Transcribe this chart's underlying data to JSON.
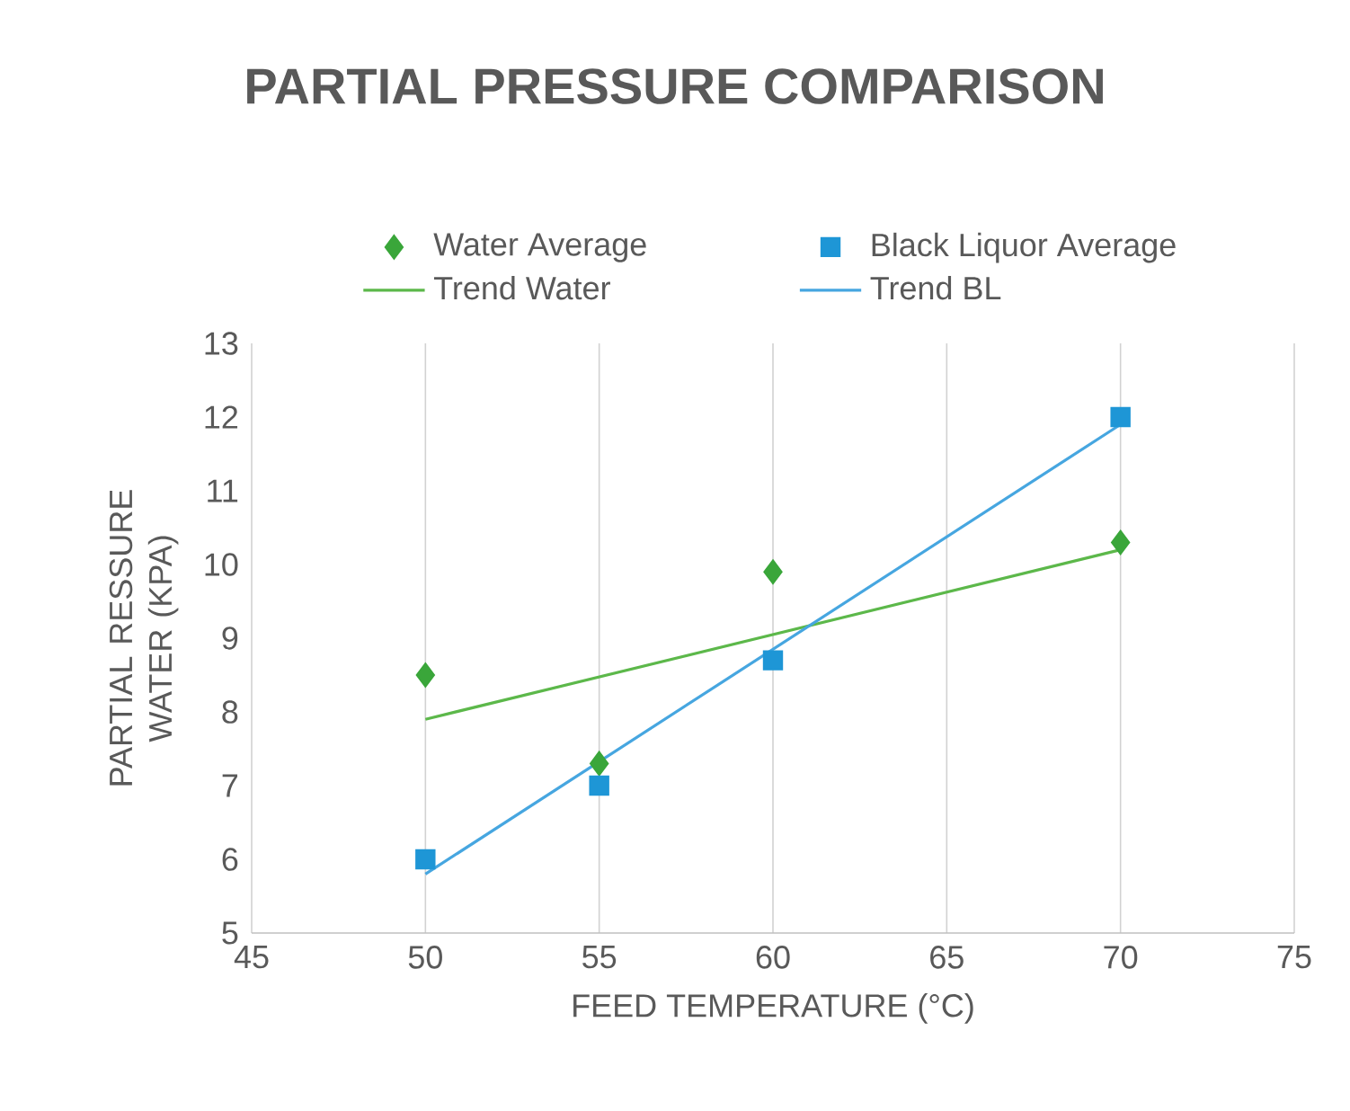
{
  "chart_data": {
    "type": "scatter",
    "title": "PARTIAL PRESSURE COMPARISON",
    "xlabel": "FEED TEMPERATURE (°C)",
    "ylabel": "PARTIAL RESSURE WATER (KPA)",
    "xlim": [
      45,
      75
    ],
    "ylim": [
      5,
      13
    ],
    "xticks": [
      45,
      50,
      55,
      60,
      65,
      70,
      75
    ],
    "yticks": [
      5,
      6,
      7,
      8,
      9,
      10,
      11,
      12,
      13
    ],
    "grid": "x",
    "legend": "top",
    "series": [
      {
        "name": "Water Average",
        "marker": "diamond",
        "color": "#3aa63a",
        "x": [
          50,
          55,
          60,
          70
        ],
        "values": [
          8.5,
          7.3,
          9.9,
          10.3
        ]
      },
      {
        "name": "Black Liquor Average",
        "marker": "square",
        "color": "#1e96d6",
        "x": [
          50,
          55,
          60,
          70
        ],
        "values": [
          6.0,
          7.0,
          8.7,
          12.0
        ]
      },
      {
        "name": "Trend Water",
        "type": "line",
        "marker": "none",
        "color": "#5cb84a",
        "x": [
          50,
          70
        ],
        "values": [
          7.9,
          10.2
        ]
      },
      {
        "name": "Trend BL",
        "type": "line",
        "marker": "none",
        "color": "#46a6e0",
        "x": [
          50,
          70
        ],
        "values": [
          5.8,
          11.9
        ]
      }
    ]
  }
}
